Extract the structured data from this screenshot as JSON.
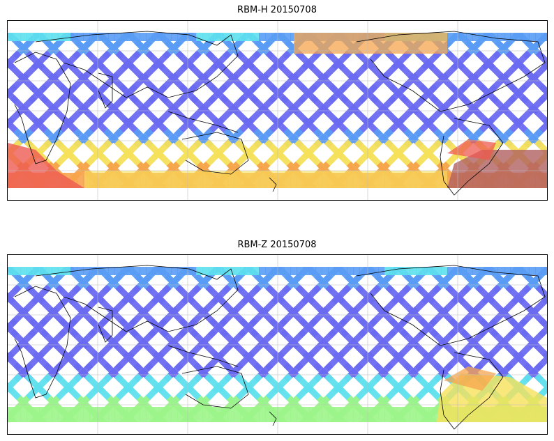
{
  "panels": [
    {
      "title": "RBM-H 20150708",
      "palette": [
        "#6b6bf2",
        "#5a9cf5",
        "#5ee0ee",
        "#9cf58a",
        "#f6e15a",
        "#f7a44c",
        "#ee5a52",
        "#b06060"
      ],
      "latitude_bands": [
        "#5a9cf5",
        "#6b6bf2",
        "#6b6bf2",
        "#6b6bf2",
        "#6b6bf2",
        "#5a9cf5",
        "#f6e15a",
        "#f7a44c"
      ],
      "hotspots": [
        "south-atlantic",
        "south-africa",
        "north-pacific"
      ]
    },
    {
      "title": "RBM-Z 20150708",
      "palette": [
        "#6b6bf2",
        "#5a9cf5",
        "#5ee0ee",
        "#9cf58a",
        "#f6e15a",
        "#f7a44c",
        "#ee5a52"
      ],
      "latitude_bands": [
        "#5a9cf5",
        "#6b6bf2",
        "#6b6bf2",
        "#6b6bf2",
        "#6b6bf2",
        "#6b6bf2",
        "#5ee0ee",
        "#9cf58a"
      ],
      "hotspots": [
        "south-atlantic"
      ]
    }
  ]
}
